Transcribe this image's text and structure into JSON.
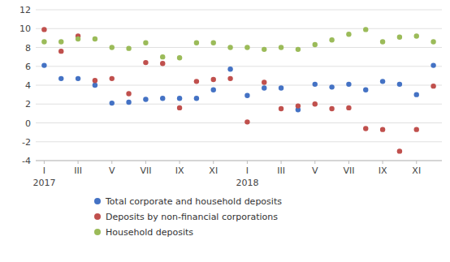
{
  "chart_data": {
    "type": "scatter",
    "x": [
      1,
      2,
      3,
      4,
      5,
      6,
      7,
      8,
      9,
      10,
      11,
      12,
      13,
      14,
      15,
      16,
      17,
      18,
      19,
      20,
      21,
      22,
      23,
      24
    ],
    "series": [
      {
        "name": "Total corporate and household deposits",
        "color": "#4472C4",
        "marker": "circle",
        "values": [
          6.1,
          4.7,
          4.7,
          4.0,
          2.1,
          2.2,
          2.5,
          2.6,
          2.6,
          2.6,
          3.5,
          5.7,
          2.9,
          3.7,
          3.7,
          1.4,
          4.1,
          3.8,
          4.1,
          3.5,
          4.4,
          4.1,
          3.0,
          6.1
        ]
      },
      {
        "name": "Deposits by non-financial corporations",
        "color": "#C0504D",
        "marker": "circle",
        "values": [
          9.9,
          7.6,
          9.2,
          4.5,
          4.7,
          3.1,
          6.4,
          6.3,
          1.6,
          4.4,
          4.6,
          4.7,
          0.1,
          4.3,
          1.5,
          1.8,
          2.0,
          1.5,
          1.6,
          -0.6,
          -0.7,
          -3.0,
          -0.7,
          3.9
        ]
      },
      {
        "name": "Household deposits",
        "color": "#9BBB59",
        "marker": "circle",
        "values": [
          8.6,
          8.6,
          8.9,
          8.9,
          8.0,
          7.9,
          8.5,
          7.0,
          6.9,
          8.5,
          8.5,
          8.0,
          8.0,
          7.8,
          8.0,
          7.8,
          8.3,
          8.8,
          9.4,
          9.9,
          8.6,
          9.1,
          9.2,
          8.6
        ]
      }
    ],
    "xlim": [
      0.5,
      24.5
    ],
    "xticks": [
      {
        "value": 1,
        "label": "I"
      },
      {
        "value": 3,
        "label": "III"
      },
      {
        "value": 5,
        "label": "V"
      },
      {
        "value": 7,
        "label": "VII"
      },
      {
        "value": 9,
        "label": "IX"
      },
      {
        "value": 11,
        "label": "XI"
      },
      {
        "value": 13,
        "label": "I"
      },
      {
        "value": 15,
        "label": "III"
      },
      {
        "value": 17,
        "label": "V"
      },
      {
        "value": 19,
        "label": "VII"
      },
      {
        "value": 21,
        "label": "IX"
      },
      {
        "value": 23,
        "label": "XI"
      }
    ],
    "ylim": [
      -4,
      12
    ],
    "yticks": [
      -4,
      -2,
      0,
      2,
      4,
      6,
      8,
      10,
      12
    ],
    "annotations": [
      {
        "text": "2017",
        "x": 1
      },
      {
        "text": "2018",
        "x": 13
      }
    ],
    "grid": true,
    "legend": "bottom"
  }
}
